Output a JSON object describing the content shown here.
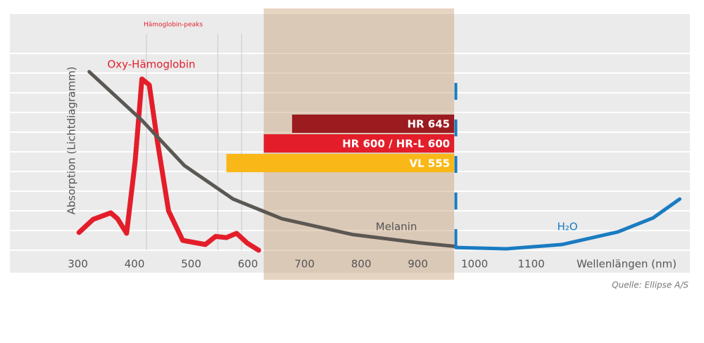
{
  "chart_data": {
    "type": "line",
    "ylabel": "Absorption (Lichtdiagramm)",
    "xlabel": "Wellenlängen (nm)",
    "xlim": [
      180,
      1380
    ],
    "ylim": [
      0,
      120
    ],
    "xticks": [
      300,
      400,
      500,
      600,
      700,
      800,
      900,
      1000,
      1100
    ],
    "grid": true,
    "peak_label": "Hämoglobin-peaks",
    "peak_lines": [
      421,
      547,
      589
    ],
    "shaded_range": [
      628,
      964
    ],
    "marker_line": 967,
    "source": "Quelle: Ellipse A/S",
    "series": [
      {
        "name": "Oxy-Hämoglobin",
        "color": "#e31e2a",
        "x": [
          302,
          327,
          358,
          370,
          386,
          401,
          413,
          426,
          440,
          460,
          485,
          525,
          543,
          562,
          580,
          599,
          619
        ],
        "values": [
          9,
          15.7,
          19,
          16,
          8.6,
          45,
          87,
          84,
          56,
          20,
          5,
          2.9,
          7,
          6.4,
          8.6,
          3.6,
          0
        ]
      },
      {
        "name": "Melanin",
        "color": "#5b5752",
        "x": [
          320,
          413,
          488,
          574,
          660,
          784,
          907,
          964
        ],
        "values": [
          90.7,
          66,
          43,
          26,
          16,
          8,
          3.6,
          2
        ]
      },
      {
        "name": "H₂O",
        "color": "#1a7cc1",
        "x": [
          967,
          1056,
          1154,
          1253,
          1315,
          1362
        ],
        "values": [
          1.4,
          0.7,
          2.9,
          9.3,
          16.4,
          26
        ]
      }
    ],
    "bars": [
      {
        "name": "HR 645",
        "color": "#9b1b1f",
        "start": 678,
        "end": 964
      },
      {
        "name": "HR 600 / HR-L 600",
        "color": "#e31e2a",
        "start": 628,
        "end": 964
      },
      {
        "name": "VL 555",
        "color": "#f9b817",
        "start": 562,
        "end": 964
      }
    ]
  }
}
